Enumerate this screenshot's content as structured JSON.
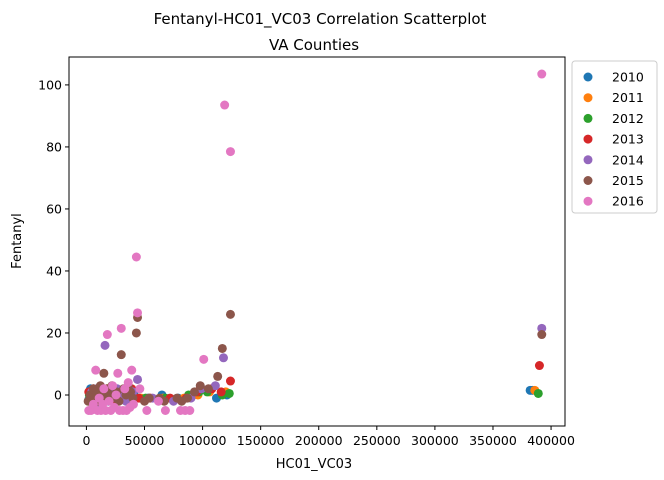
{
  "chart_data": {
    "type": "scatter",
    "title": "Fentanyl-HC01_VC03 Correlation Scatterplot",
    "subtitle": "VA Counties",
    "xlabel": "HC01_VC03",
    "ylabel": "Fentanyl",
    "xlim": [
      -15000,
      412000
    ],
    "ylim": [
      -10,
      109
    ],
    "xticks": [
      0,
      50000,
      100000,
      150000,
      200000,
      250000,
      300000,
      350000,
      400000
    ],
    "yticks": [
      0,
      20,
      40,
      60,
      80,
      100
    ],
    "grid": false,
    "legend_position": "outside-right",
    "series": [
      {
        "name": "2010",
        "color": "#1f77b4",
        "points": [
          [
            2000,
            -1.5
          ],
          [
            3500,
            2
          ],
          [
            5000,
            0
          ],
          [
            6500,
            -2
          ],
          [
            8000,
            1
          ],
          [
            9500,
            -3
          ],
          [
            11000,
            2
          ],
          [
            13000,
            0
          ],
          [
            15000,
            -1
          ],
          [
            17000,
            1
          ],
          [
            19000,
            -2
          ],
          [
            21000,
            0
          ],
          [
            24000,
            1
          ],
          [
            27000,
            -1
          ],
          [
            31000,
            0
          ],
          [
            36000,
            -1
          ],
          [
            41000,
            1
          ],
          [
            46000,
            -1
          ],
          [
            53000,
            -1
          ],
          [
            65000,
            0
          ],
          [
            79000,
            -1
          ],
          [
            92000,
            0
          ],
          [
            112000,
            -1
          ],
          [
            121000,
            0
          ],
          [
            382000,
            1.5
          ],
          [
            384000,
            1.5
          ]
        ]
      },
      {
        "name": "2011",
        "color": "#ff7f0e",
        "points": [
          [
            3000,
            -1
          ],
          [
            5000,
            1
          ],
          [
            7000,
            0
          ],
          [
            9000,
            -2
          ],
          [
            11000,
            1
          ],
          [
            14000,
            -1
          ],
          [
            17000,
            0
          ],
          [
            20000,
            1
          ],
          [
            23000,
            -2
          ],
          [
            27000,
            0
          ],
          [
            32000,
            1
          ],
          [
            38000,
            0
          ],
          [
            47000,
            -1
          ],
          [
            66000,
            -1
          ],
          [
            84000,
            -1
          ],
          [
            96000,
            0
          ],
          [
            106000,
            1
          ],
          [
            120000,
            1
          ],
          [
            386000,
            1.5
          ]
        ]
      },
      {
        "name": "2012",
        "color": "#2ca02c",
        "points": [
          [
            2500,
            0
          ],
          [
            4500,
            -2
          ],
          [
            6000,
            1
          ],
          [
            8500,
            -1
          ],
          [
            10500,
            2
          ],
          [
            12500,
            0
          ],
          [
            15500,
            -2
          ],
          [
            18500,
            1
          ],
          [
            22000,
            0
          ],
          [
            26000,
            -1
          ],
          [
            30000,
            1
          ],
          [
            35000,
            0
          ],
          [
            42000,
            -1
          ],
          [
            51000,
            -1
          ],
          [
            68000,
            -1
          ],
          [
            88000,
            0
          ],
          [
            97000,
            1
          ],
          [
            104000,
            1
          ],
          [
            117000,
            0
          ],
          [
            123000,
            0.5
          ],
          [
            389000,
            0.5
          ]
        ]
      },
      {
        "name": "2013",
        "color": "#d62728",
        "points": [
          [
            2000,
            1
          ],
          [
            4000,
            -1
          ],
          [
            6000,
            2
          ],
          [
            8000,
            0
          ],
          [
            10000,
            -2
          ],
          [
            12000,
            1
          ],
          [
            14500,
            -1
          ],
          [
            17500,
            2
          ],
          [
            21000,
            0
          ],
          [
            25000,
            -2
          ],
          [
            29000,
            1
          ],
          [
            33000,
            0
          ],
          [
            39000,
            2
          ],
          [
            45000,
            -1
          ],
          [
            55000,
            -1
          ],
          [
            72000,
            -1
          ],
          [
            86000,
            -1
          ],
          [
            95000,
            1
          ],
          [
            108000,
            2
          ],
          [
            116000,
            1
          ],
          [
            124000,
            4.5
          ],
          [
            390000,
            9.5
          ]
        ]
      },
      {
        "name": "2014",
        "color": "#9467bd",
        "points": [
          [
            2500,
            -2
          ],
          [
            4500,
            1
          ],
          [
            6500,
            -1
          ],
          [
            9000,
            2
          ],
          [
            11500,
            0
          ],
          [
            14000,
            -2
          ],
          [
            16000,
            16
          ],
          [
            19000,
            1
          ],
          [
            22500,
            -1
          ],
          [
            26500,
            2
          ],
          [
            30500,
            0
          ],
          [
            34000,
            -2
          ],
          [
            40000,
            1
          ],
          [
            44000,
            5
          ],
          [
            57000,
            -1
          ],
          [
            75000,
            -2
          ],
          [
            90000,
            -1
          ],
          [
            99000,
            2
          ],
          [
            111000,
            3
          ],
          [
            118000,
            12
          ],
          [
            392000,
            21.5
          ]
        ]
      },
      {
        "name": "2015",
        "color": "#8c564b",
        "points": [
          [
            1500,
            -2
          ],
          [
            3000,
            0
          ],
          [
            4500,
            -1
          ],
          [
            6000,
            2
          ],
          [
            7500,
            -1
          ],
          [
            9000,
            1
          ],
          [
            10500,
            -2
          ],
          [
            12000,
            3
          ],
          [
            13500,
            0
          ],
          [
            15000,
            7
          ],
          [
            16500,
            -1
          ],
          [
            18000,
            2
          ],
          [
            20000,
            0
          ],
          [
            22000,
            3
          ],
          [
            24000,
            -1
          ],
          [
            26000,
            1
          ],
          [
            28000,
            -2
          ],
          [
            30000,
            13
          ],
          [
            32000,
            2
          ],
          [
            34000,
            0
          ],
          [
            36000,
            3
          ],
          [
            38000,
            1
          ],
          [
            40000,
            -1
          ],
          [
            43000,
            20
          ],
          [
            44000,
            25
          ],
          [
            50000,
            -2
          ],
          [
            54000,
            -1
          ],
          [
            63000,
            -1
          ],
          [
            67000,
            -2
          ],
          [
            78000,
            -1
          ],
          [
            82000,
            -2
          ],
          [
            87000,
            -1
          ],
          [
            93000,
            1
          ],
          [
            98000,
            3
          ],
          [
            105000,
            2
          ],
          [
            113000,
            6
          ],
          [
            117000,
            15
          ],
          [
            124000,
            26
          ],
          [
            392000,
            19.5
          ]
        ]
      },
      {
        "name": "2016",
        "color": "#e377c2",
        "points": [
          [
            2000,
            -5
          ],
          [
            4000,
            -5
          ],
          [
            6000,
            -3
          ],
          [
            8000,
            8
          ],
          [
            9500,
            -5
          ],
          [
            11000,
            -1
          ],
          [
            12500,
            -5
          ],
          [
            14000,
            -3
          ],
          [
            15000,
            2
          ],
          [
            16500,
            -5
          ],
          [
            18000,
            19.5
          ],
          [
            19500,
            -2
          ],
          [
            21000,
            -5
          ],
          [
            22500,
            3
          ],
          [
            24000,
            -4
          ],
          [
            25500,
            0
          ],
          [
            27000,
            7
          ],
          [
            28500,
            -5
          ],
          [
            30000,
            21.5
          ],
          [
            31500,
            -5
          ],
          [
            33000,
            2
          ],
          [
            34500,
            -5
          ],
          [
            36000,
            4
          ],
          [
            37500,
            -4
          ],
          [
            39000,
            8
          ],
          [
            40500,
            -3
          ],
          [
            43000,
            44.5
          ],
          [
            44000,
            26.5
          ],
          [
            46000,
            2
          ],
          [
            52000,
            -5
          ],
          [
            62000,
            -2
          ],
          [
            68000,
            -5
          ],
          [
            81000,
            -5
          ],
          [
            85000,
            -5
          ],
          [
            89000,
            -5
          ],
          [
            101000,
            11.5
          ],
          [
            119000,
            93.5
          ],
          [
            124000,
            78.5
          ],
          [
            392000,
            103.5
          ]
        ]
      }
    ]
  }
}
